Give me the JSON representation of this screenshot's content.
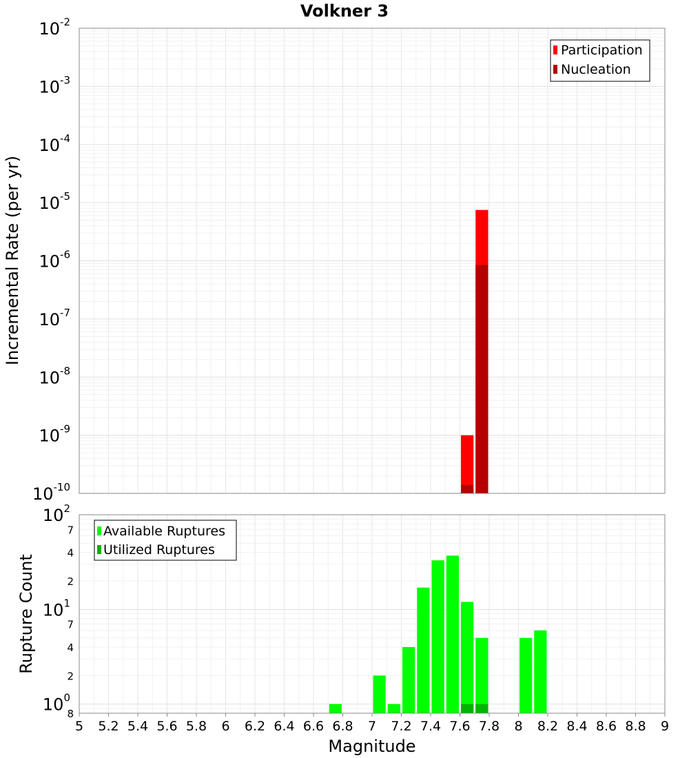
{
  "chart_data": [
    {
      "type": "bar",
      "title": "Volkner 3",
      "xlabel": "Magnitude",
      "ylabel": "Incremental Rate (per yr)",
      "xlim": [
        5,
        9
      ],
      "ylim": [
        1e-10,
        0.01
      ],
      "yscale": "log",
      "grid": true,
      "legend_position": "top-right",
      "x_ticks": [
        "5",
        "5.2",
        "5.4",
        "5.6",
        "5.8",
        "6",
        "6.2",
        "6.4",
        "6.6",
        "6.8",
        "7",
        "7.2",
        "7.4",
        "7.6",
        "7.8",
        "8",
        "8.2",
        "8.4",
        "8.6",
        "8.8",
        "9"
      ],
      "y_ticks": [
        {
          "base": "10",
          "exp": "-2",
          "value": 0.01
        },
        {
          "base": "10",
          "exp": "-3",
          "value": 0.001
        },
        {
          "base": "10",
          "exp": "-4",
          "value": 0.0001
        },
        {
          "base": "10",
          "exp": "-5",
          "value": 1e-05
        },
        {
          "base": "10",
          "exp": "-6",
          "value": 1e-06
        },
        {
          "base": "10",
          "exp": "-7",
          "value": 1e-07
        },
        {
          "base": "10",
          "exp": "-8",
          "value": 1e-08
        },
        {
          "base": "10",
          "exp": "-9",
          "value": 1e-09
        },
        {
          "base": "10",
          "exp": "-10",
          "value": 1e-10
        }
      ],
      "bin_width": 0.1,
      "series": [
        {
          "name": "Participation",
          "color": "#ff0000",
          "x": [
            7.65,
            7.75
          ],
          "values": [
            1e-09,
            7.5e-06
          ]
        },
        {
          "name": "Nucleation",
          "color": "#b30000",
          "x": [
            7.65,
            7.75
          ],
          "values": [
            1.4e-10,
            8.5e-07
          ]
        }
      ]
    },
    {
      "type": "bar",
      "xlabel": "Magnitude",
      "ylabel": "Rupture Count",
      "xlim": [
        5,
        9
      ],
      "ylim": [
        0.8,
        100
      ],
      "yscale": "log",
      "grid": true,
      "legend_position": "top-left",
      "x_ticks": [
        "5",
        "5.2",
        "5.4",
        "5.6",
        "5.8",
        "6",
        "6.2",
        "6.4",
        "6.6",
        "6.8",
        "7",
        "7.2",
        "7.4",
        "7.6",
        "7.8",
        "8",
        "8.2",
        "8.4",
        "8.6",
        "8.8",
        "9"
      ],
      "y_ticks": [
        {
          "base": "10",
          "exp": "2",
          "value": 100
        },
        {
          "base": "10",
          "exp": "1",
          "value": 10
        },
        {
          "base": "10",
          "exp": "0",
          "value": 1
        }
      ],
      "y_minor_ticks": [
        {
          "label": "7",
          "value": 70
        },
        {
          "label": "4",
          "value": 40
        },
        {
          "label": "2",
          "value": 20
        },
        {
          "label": "7",
          "value": 7
        },
        {
          "label": "4",
          "value": 4
        },
        {
          "label": "2",
          "value": 2
        },
        {
          "label": "8",
          "value": 0.8
        }
      ],
      "bin_width": 0.1,
      "series": [
        {
          "name": "Available Ruptures",
          "color": "#00ff00",
          "x": [
            6.75,
            7.05,
            7.15,
            7.25,
            7.35,
            7.45,
            7.55,
            7.65,
            7.75,
            8.05,
            8.15
          ],
          "values": [
            1,
            2,
            1,
            4,
            17,
            33,
            37,
            12,
            5,
            5,
            6
          ]
        },
        {
          "name": "Utilized Ruptures",
          "color": "#00b300",
          "x": [
            7.65,
            7.75
          ],
          "values": [
            1,
            1
          ]
        }
      ]
    }
  ]
}
